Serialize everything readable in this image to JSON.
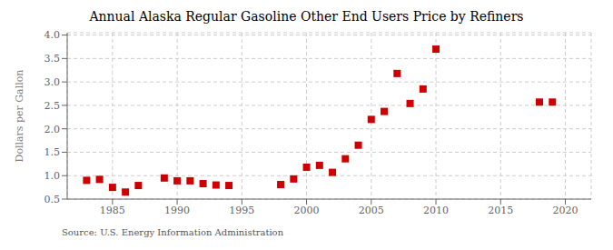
{
  "chart_data": {
    "type": "scatter",
    "title": "Annual Alaska Regular Gasoline Other End Users Price by Refiners",
    "ylabel": "Dollars per Gallon",
    "annotations": [
      "Source: U.S. Energy Information Administration"
    ],
    "x": [
      1983,
      1984,
      1985,
      1986,
      1987,
      1989,
      1990,
      1991,
      1992,
      1993,
      1994,
      1998,
      1999,
      2000,
      2001,
      2002,
      2003,
      2004,
      2005,
      2006,
      2007,
      2008,
      2009,
      2010,
      2018,
      2019
    ],
    "values": [
      0.9,
      0.92,
      0.75,
      0.65,
      0.79,
      0.95,
      0.89,
      0.89,
      0.83,
      0.8,
      0.79,
      0.81,
      0.93,
      1.18,
      1.22,
      1.07,
      1.36,
      1.65,
      2.2,
      2.37,
      3.18,
      2.54,
      2.85,
      3.7,
      2.57,
      2.57
    ],
    "color": "#cc0000",
    "marker": "square",
    "xlim": [
      1981.5,
      2022
    ],
    "ylim": [
      0.5,
      4.05
    ],
    "xticks": [
      1985,
      1990,
      1995,
      2000,
      2005,
      2010,
      2015,
      2020
    ],
    "yticks": [
      0.5,
      {
        "value": 1,
        "label": "1.0"
      },
      1.5,
      {
        "value": 2,
        "label": "2.0"
      },
      2.5,
      {
        "value": 3,
        "label": "3.0"
      },
      3.5,
      {
        "value": 4,
        "label": "4.0"
      }
    ],
    "grid": true
  }
}
